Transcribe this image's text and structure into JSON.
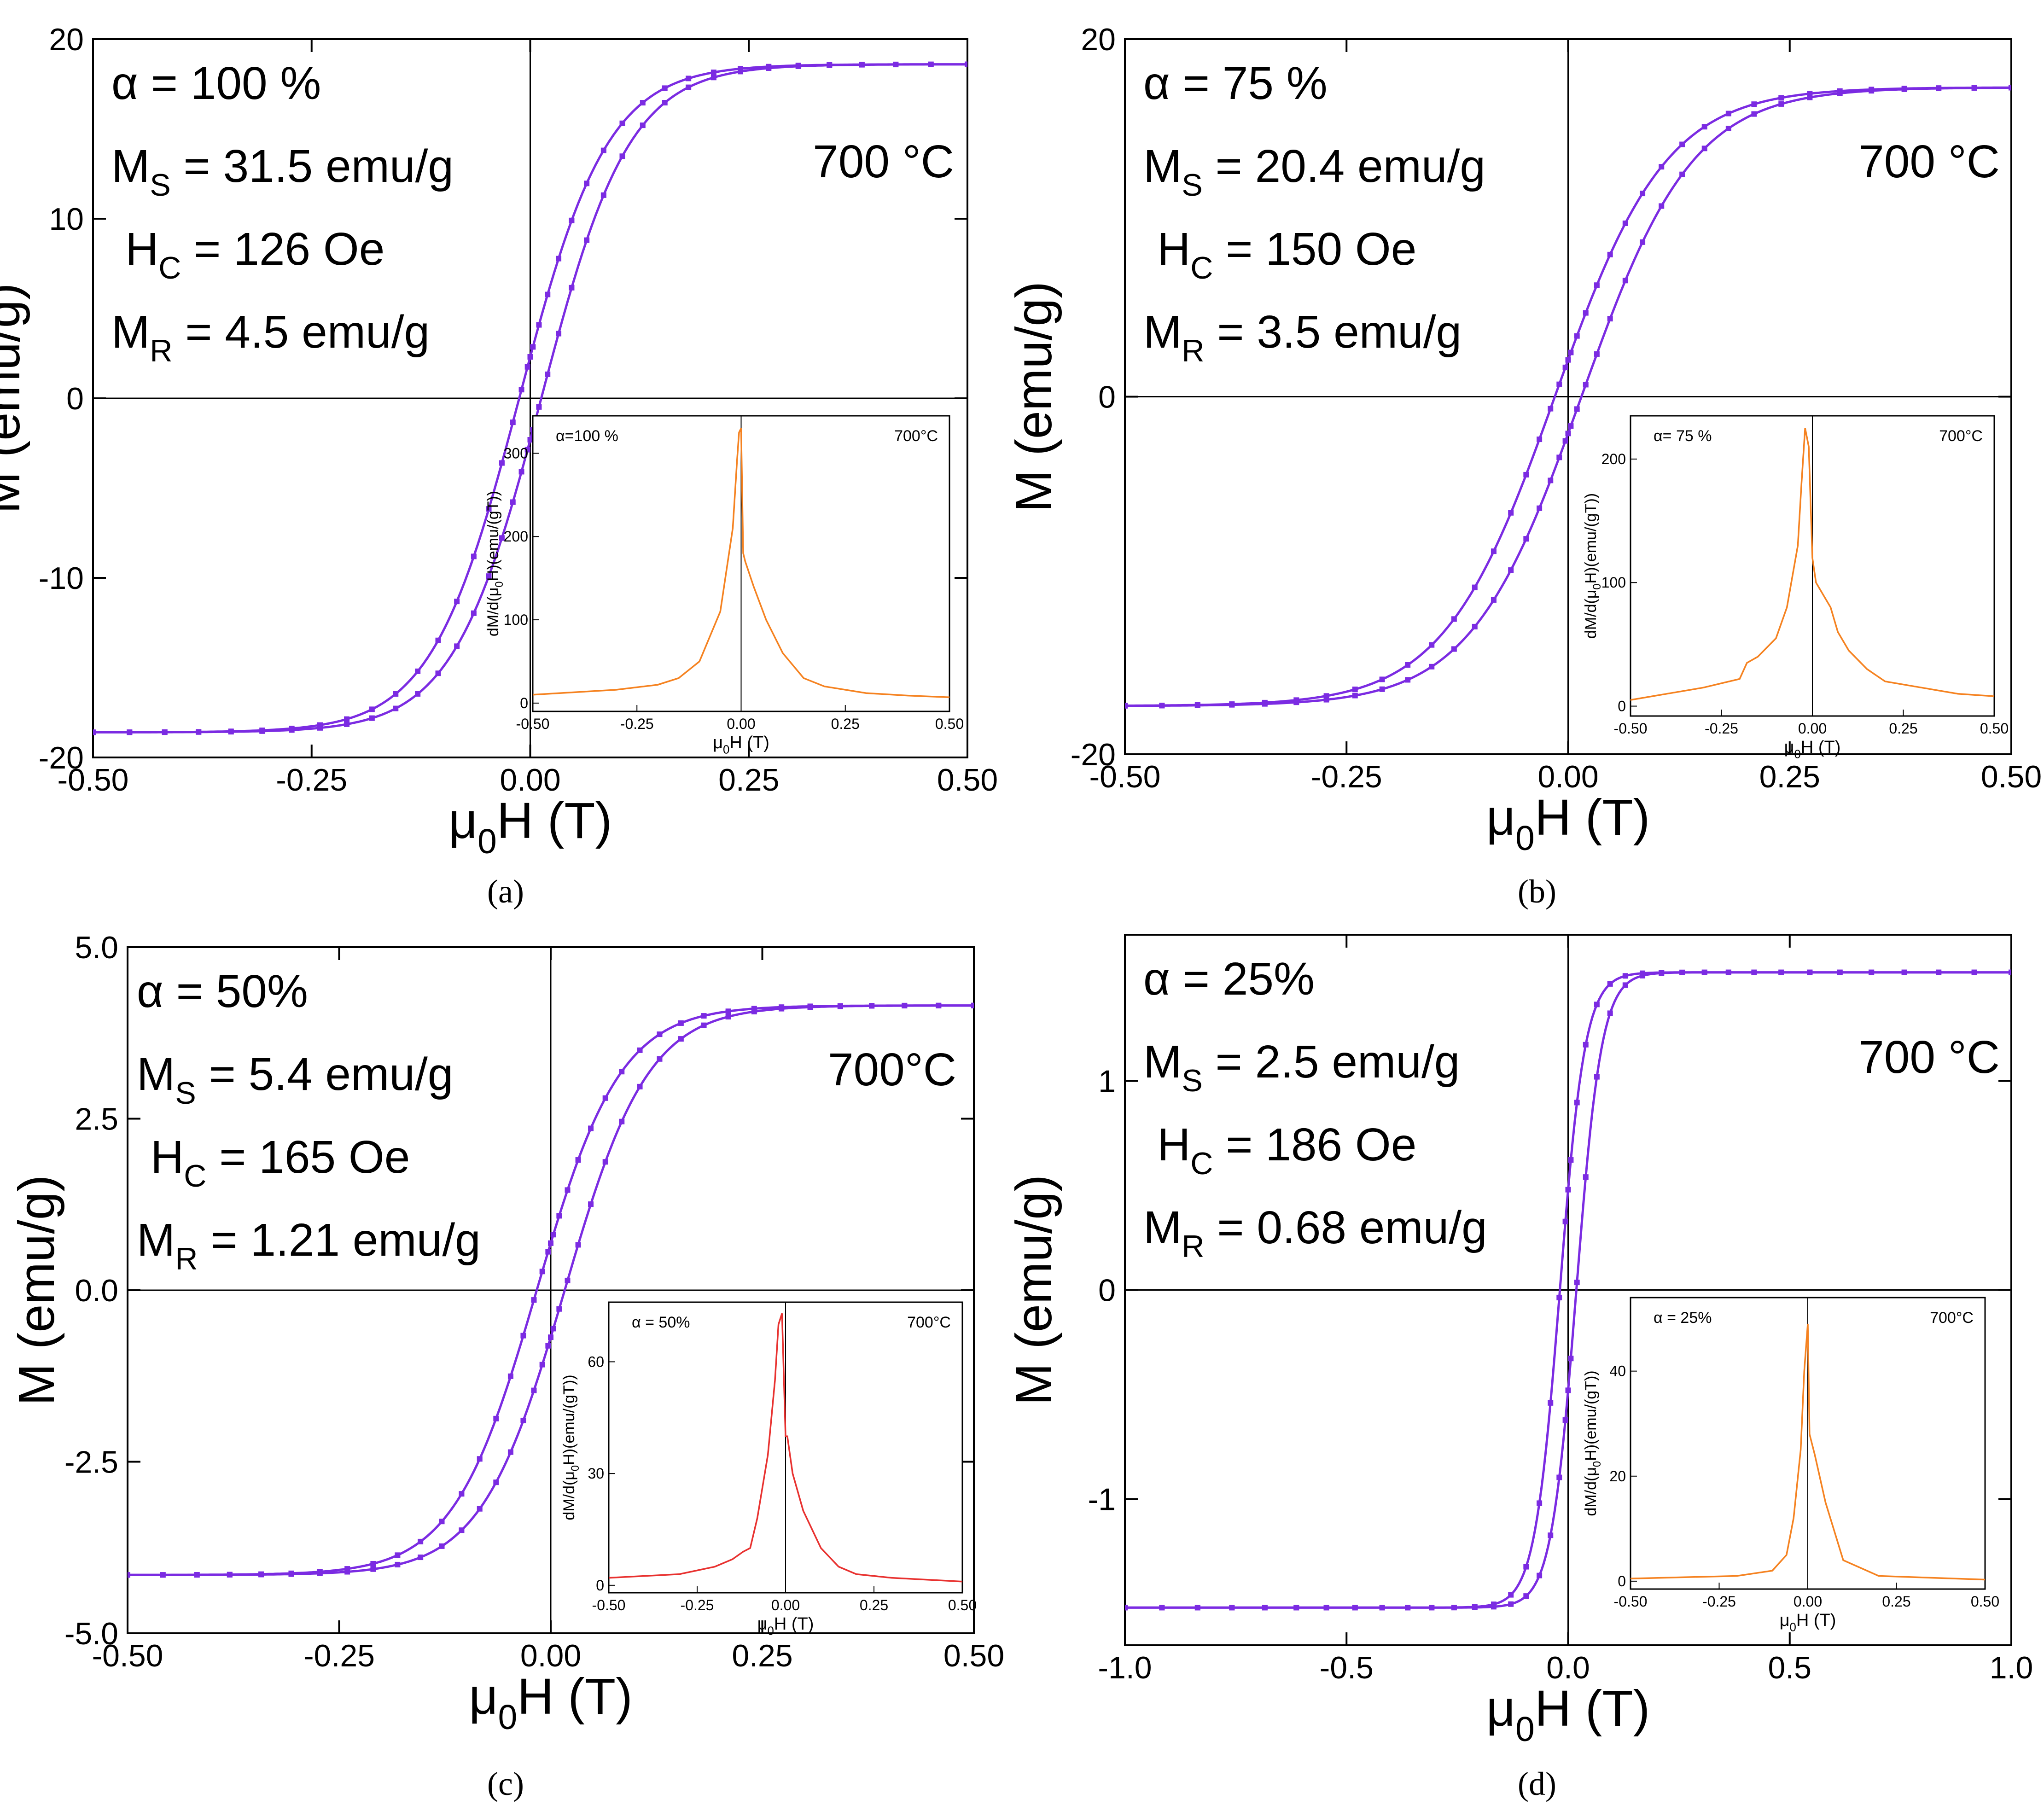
{
  "chart_data": [
    {
      "type": "line",
      "panel": "a",
      "caption": "(a)",
      "xlabel": "μ0H (T)",
      "ylabel": "M (emu/g)",
      "xlim": [
        -0.5,
        0.5
      ],
      "ylim": [
        -20,
        20
      ],
      "xticks": [
        -0.5,
        -0.25,
        0.0,
        0.25,
        0.5
      ],
      "xtick_labels": [
        "-0.50",
        "-0.25",
        "0.00",
        "0.25",
        "0.50"
      ],
      "yticks": [
        -20,
        -10,
        0,
        10,
        20
      ],
      "ytick_labels": [
        "-20",
        "-10",
        "0",
        "10",
        "20"
      ],
      "params": {
        "alpha": "α = 100 %",
        "ms": "MS = 31.5 emu/g",
        "hc": "HC = 126 Oe",
        "mr": "MR = 4.5 emu/g",
        "temp": "700 °C"
      },
      "Ms": 18.6,
      "Mr": 4.5,
      "Hc": 0.0126,
      "width": 0.1,
      "inset": {
        "label": "α=100 %",
        "temp": "700°C",
        "xlabel": "μ0H (T)",
        "ylabel": "dM/d(μ0H)(emu/(gT))",
        "xlim": [
          -0.5,
          0.5
        ],
        "ylim": [
          -10,
          345
        ],
        "xtick_labels": [
          "-0.50",
          "-0.25",
          "0.00",
          "0.25",
          "0.50"
        ],
        "yticks": [
          0,
          100,
          200,
          300
        ],
        "color": "#F58220",
        "x": [
          -0.5,
          -0.4,
          -0.3,
          -0.2,
          -0.15,
          -0.1,
          -0.05,
          -0.02,
          -0.01,
          -0.005,
          0.0,
          0.005,
          0.01,
          0.03,
          0.06,
          0.1,
          0.15,
          0.2,
          0.3,
          0.4,
          0.5
        ],
        "y": [
          10,
          13,
          16,
          22,
          30,
          50,
          110,
          210,
          290,
          325,
          330,
          180,
          170,
          140,
          100,
          60,
          30,
          20,
          12,
          9,
          7
        ]
      }
    },
    {
      "type": "line",
      "panel": "b",
      "caption": "(b)",
      "xlabel": "μ0H (T)",
      "ylabel": "M (emu/g)",
      "xlim": [
        -0.5,
        0.5
      ],
      "ylim": [
        -20,
        20
      ],
      "xticks": [
        -0.5,
        -0.25,
        0.0,
        0.25,
        0.5
      ],
      "xtick_labels": [
        "-0.50",
        "-0.25",
        "0.00",
        "0.25",
        "0.50"
      ],
      "yticks": [
        -20,
        0,
        20
      ],
      "ytick_labels": [
        "-20",
        "0",
        "20"
      ],
      "params": {
        "alpha": "α = 75 %",
        "ms": "MS = 20.4 emu/g",
        "hc": "HC = 150 Oe",
        "mr": "MR = 3.5 emu/g",
        "temp": "700 °C"
      },
      "Ms": 17.3,
      "Mr": 3.5,
      "Hc": 0.015,
      "width": 0.11,
      "inset": {
        "label": "α= 75 %",
        "temp": "700°C",
        "xlabel": "μ0H (T)",
        "ylabel": "dM/d(μ0H)(emu/(gT))",
        "xlim": [
          -0.5,
          0.5
        ],
        "ylim": [
          -8,
          235
        ],
        "xtick_labels": [
          "-0.50",
          "-0.25",
          "0.00",
          "0.25",
          "0.50"
        ],
        "yticks": [
          0,
          100,
          200
        ],
        "color": "#F58220",
        "x": [
          -0.5,
          -0.4,
          -0.3,
          -0.2,
          -0.18,
          -0.15,
          -0.1,
          -0.07,
          -0.04,
          -0.03,
          -0.02,
          -0.01,
          0.0,
          0.005,
          0.01,
          0.03,
          0.05,
          0.07,
          0.1,
          0.15,
          0.2,
          0.3,
          0.4,
          0.5
        ],
        "y": [
          5,
          10,
          15,
          22,
          35,
          40,
          55,
          80,
          130,
          180,
          225,
          210,
          120,
          110,
          100,
          90,
          80,
          60,
          45,
          30,
          20,
          15,
          10,
          8
        ]
      }
    },
    {
      "type": "line",
      "panel": "c",
      "caption": "(c)",
      "xlabel": "μ0H (T)",
      "ylabel": "M (emu/g)",
      "xlim": [
        -0.5,
        0.5
      ],
      "ylim": [
        -5,
        5
      ],
      "xticks": [
        -0.5,
        -0.25,
        0.0,
        0.25,
        0.5
      ],
      "xtick_labels": [
        "-0.50",
        "-0.25",
        "0.00",
        "0.25",
        "0.50"
      ],
      "yticks": [
        -5,
        -2.5,
        0,
        2.5,
        5
      ],
      "ytick_labels": [
        "-5.0",
        "-2.5",
        "0.0",
        "2.5",
        "5.0"
      ],
      "params": {
        "alpha": "α = 50%",
        "ms": "MS = 5.4 emu/g",
        "hc": "HC = 165 Oe",
        "mr": "MR = 1.21 emu/g",
        "temp": "700°C"
      },
      "Ms": 4.15,
      "Mr": 1.21,
      "Hc": 0.0165,
      "width": 0.09,
      "inset": {
        "label": "α = 50%",
        "temp": "700°C",
        "xlabel": "μ0H (T)",
        "ylabel": "dM/d(μ0H)(emu/(gT))",
        "xlim": [
          -0.5,
          0.5
        ],
        "ylim": [
          -2,
          76
        ],
        "xtick_labels": [
          "-0.50",
          "-0.25",
          "0.00",
          "0.25",
          "0.50"
        ],
        "yticks": [
          0,
          30,
          60
        ],
        "color": "#E8312F",
        "x": [
          -0.5,
          -0.3,
          -0.2,
          -0.15,
          -0.12,
          -0.1,
          -0.08,
          -0.05,
          -0.03,
          -0.02,
          -0.01,
          0.0,
          0.005,
          0.02,
          0.05,
          0.1,
          0.15,
          0.2,
          0.3,
          0.5
        ],
        "y": [
          2,
          3,
          5,
          7,
          9,
          10,
          18,
          35,
          55,
          70,
          73,
          40,
          40,
          30,
          20,
          10,
          5,
          3,
          2,
          1
        ]
      }
    },
    {
      "type": "line",
      "panel": "d",
      "caption": "(d)",
      "xlabel": "μ0H (T)",
      "ylabel": "M (emu/g)",
      "xlim": [
        -1.0,
        1.0
      ],
      "ylim": [
        -1.7,
        1.7
      ],
      "xticks": [
        -1.0,
        -0.5,
        0.0,
        0.5,
        1.0
      ],
      "xtick_labels": [
        "-1.0",
        "-0.5",
        "0.0",
        "0.5",
        "1.0"
      ],
      "yticks": [
        -1,
        0,
        1
      ],
      "ytick_labels": [
        "-1",
        "0",
        "1"
      ],
      "params": {
        "alpha": "α = 25%",
        "ms": "MS = 2.5 emu/g",
        "hc": "HC = 186 Oe",
        "mr": "MR = 0.68 emu/g",
        "temp": "700 °C"
      },
      "Ms": 1.52,
      "Mr": 0.68,
      "Hc": 0.0186,
      "width": 0.045,
      "inset": {
        "label": "α = 25%",
        "temp": "700°C",
        "xlabel": "μ0H (T)",
        "ylabel": "dM/d(μ0H)(emu/(gT))",
        "xlim": [
          -0.5,
          0.5
        ],
        "ylim": [
          -1.5,
          54
        ],
        "xtick_labels": [
          "-0.50",
          "-0.25",
          "0.00",
          "0.25",
          "0.50"
        ],
        "yticks": [
          0,
          20,
          40
        ],
        "color": "#F58220",
        "x": [
          -0.5,
          -0.2,
          -0.1,
          -0.06,
          -0.04,
          -0.02,
          -0.01,
          0.0,
          0.005,
          0.02,
          0.05,
          0.1,
          0.2,
          0.5
        ],
        "y": [
          0.5,
          1,
          2,
          5,
          12,
          25,
          40,
          49,
          28,
          24,
          15,
          4,
          1,
          0.3
        ]
      }
    }
  ]
}
